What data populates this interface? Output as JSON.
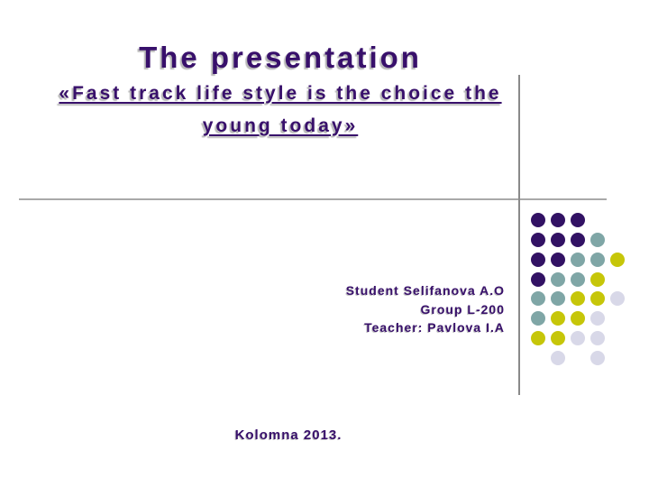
{
  "slide": {
    "title": "The presentation",
    "subtitle": {
      "line1": "«Fast track life style is the choice the",
      "line2": "young today»"
    },
    "credits": {
      "line1": "Student Selifanova A.O",
      "line2": "Group L-200",
      "line3": "Teacher: Pavlova I.A"
    },
    "footer": "Kolomna 2013."
  },
  "colors": {
    "text_purple": "#38106b",
    "title_shadow": "#b8b8b8",
    "horizontal_rule": "#a9a9a9",
    "vertical_rule": "#8a8a8a",
    "dot_purple": "#321264",
    "dot_teal": "#7fa6a6",
    "dot_yellow": "#c6c609",
    "dot_lavender": "#d8d8e8"
  },
  "decor": {
    "dot_col_pitch": 22,
    "dot_row_pitch": 21.86,
    "dot_matrix": [
      [
        "purple",
        "purple",
        "purple",
        null,
        null
      ],
      [
        "purple",
        "purple",
        "purple",
        "teal",
        null
      ],
      [
        "purple",
        "purple",
        "teal",
        "teal",
        "yellow"
      ],
      [
        "purple",
        "teal",
        "teal",
        "yellow",
        null
      ],
      [
        "teal",
        "teal",
        "yellow",
        "yellow",
        "lavender"
      ],
      [
        "teal",
        "yellow",
        "yellow",
        "lavender",
        null
      ],
      [
        "yellow",
        "yellow",
        "lavender",
        "lavender",
        null
      ],
      [
        null,
        "lavender",
        null,
        "lavender",
        null
      ]
    ]
  }
}
